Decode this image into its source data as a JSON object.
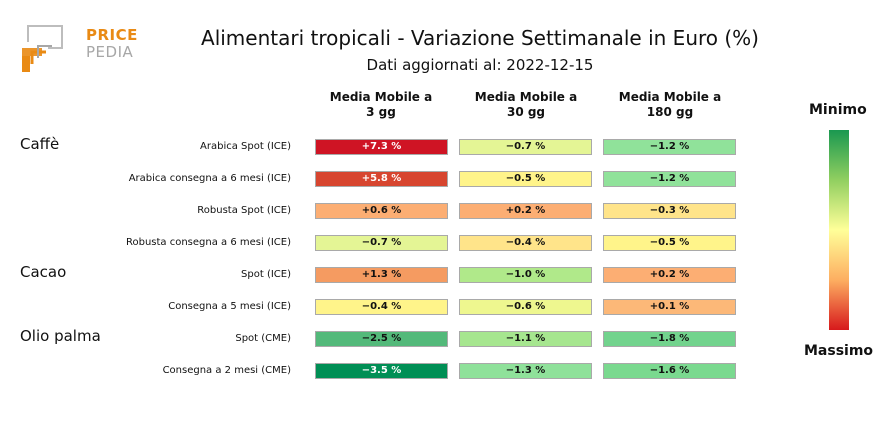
{
  "logo": {
    "line1": "PRICE",
    "line2": "PEDIA"
  },
  "title": "Alimentari tropicali - Variazione Settimanale in Euro (%)",
  "subtitle": "Dati aggiornati al: 2022-12-15",
  "legend": {
    "top": "Minimo",
    "bottom": "Massimo"
  },
  "colors": {
    "logo_accent": "#e98a14",
    "logo_gray": "#a7a7a7"
  },
  "chart_data": {
    "type": "heatmap",
    "columns": [
      "Media Mobile a\n3 gg",
      "Media Mobile a\n30 gg",
      "Media Mobile a\n180 gg"
    ],
    "groups": [
      {
        "name": "Caffè",
        "rows": [
          0,
          1,
          2,
          3
        ]
      },
      {
        "name": "Cacao",
        "rows": [
          4,
          5
        ]
      },
      {
        "name": "Olio palma",
        "rows": [
          6,
          7
        ]
      }
    ],
    "rows": [
      {
        "label": "Arabica Spot (ICE)",
        "values": [
          "+7.3 %",
          "−0.7 %",
          "−1.2 %"
        ],
        "colors": [
          "#cf1424",
          "#e4f595",
          "#90e29a"
        ],
        "text_colors": [
          "#ffffff",
          "#111111",
          "#111111"
        ]
      },
      {
        "label": "Arabica consegna a 6 mesi (ICE)",
        "values": [
          "+5.8 %",
          "−0.5 %",
          "−1.2 %"
        ],
        "colors": [
          "#d7452f",
          "#fff48a",
          "#90e29a"
        ],
        "text_colors": [
          "#ffffff",
          "#111111",
          "#111111"
        ]
      },
      {
        "label": "Robusta Spot (ICE)",
        "values": [
          "+0.6 %",
          "+0.2 %",
          "−0.3 %"
        ],
        "colors": [
          "#fcae73",
          "#fcae73",
          "#ffe48a"
        ],
        "text_colors": [
          "#111111",
          "#111111",
          "#111111"
        ]
      },
      {
        "label": "Robusta consegna a 6 mesi (ICE)",
        "values": [
          "−0.7 %",
          "−0.4 %",
          "−0.5 %"
        ],
        "colors": [
          "#e4f595",
          "#ffe48a",
          "#fff48a"
        ],
        "text_colors": [
          "#111111",
          "#111111",
          "#111111"
        ]
      },
      {
        "label": "Spot (ICE)",
        "values": [
          "+1.3 %",
          "−1.0 %",
          "+0.2 %"
        ],
        "colors": [
          "#f59b61",
          "#b0e98a",
          "#fcae73"
        ],
        "text_colors": [
          "#111111",
          "#111111",
          "#111111"
        ]
      },
      {
        "label": "Consegna a 5 mesi (ICE)",
        "values": [
          "−0.4 %",
          "−0.6 %",
          "+0.1 %"
        ],
        "colors": [
          "#fff48a",
          "#eef78f",
          "#fcb878"
        ],
        "text_colors": [
          "#111111",
          "#111111",
          "#111111"
        ]
      },
      {
        "label": "Spot (CME)",
        "values": [
          "−2.5 %",
          "−1.1 %",
          "−1.8 %"
        ],
        "colors": [
          "#53b97a",
          "#a6e68f",
          "#72d38d"
        ],
        "text_colors": [
          "#111111",
          "#111111",
          "#111111"
        ]
      },
      {
        "label": "Consegna a 2 mesi (CME)",
        "values": [
          "−3.5 %",
          "−1.3 %",
          "−1.6 %"
        ],
        "colors": [
          "#008f55",
          "#8fe19a",
          "#7ad98f"
        ],
        "text_colors": [
          "#ffffff",
          "#111111",
          "#111111"
        ]
      }
    ],
    "colorbar": {
      "colors": [
        "#1a9850",
        "#91cf60",
        "#ffff99",
        "#fdae61",
        "#d7191c"
      ]
    }
  }
}
